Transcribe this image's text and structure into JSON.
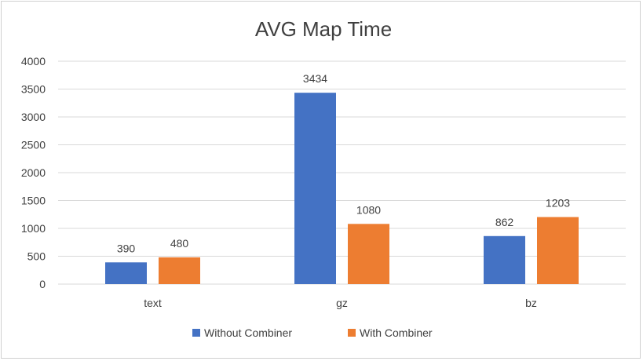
{
  "chart_data": {
    "type": "bar",
    "title": "AVG Map Time",
    "xlabel": "",
    "ylabel": "",
    "categories": [
      "text",
      "gz",
      "bz"
    ],
    "series": [
      {
        "name": "Without Combiner",
        "color": "#4472C4",
        "values": [
          390,
          3434,
          862
        ]
      },
      {
        "name": "With Combiner",
        "color": "#ED7D31",
        "values": [
          480,
          1080,
          1203
        ]
      }
    ],
    "ylim": [
      0,
      4000
    ],
    "yticks": [
      0,
      500,
      1000,
      1500,
      2000,
      2500,
      3000,
      3500,
      4000
    ],
    "grid": true,
    "legend": "bottom",
    "data_labels": true
  }
}
